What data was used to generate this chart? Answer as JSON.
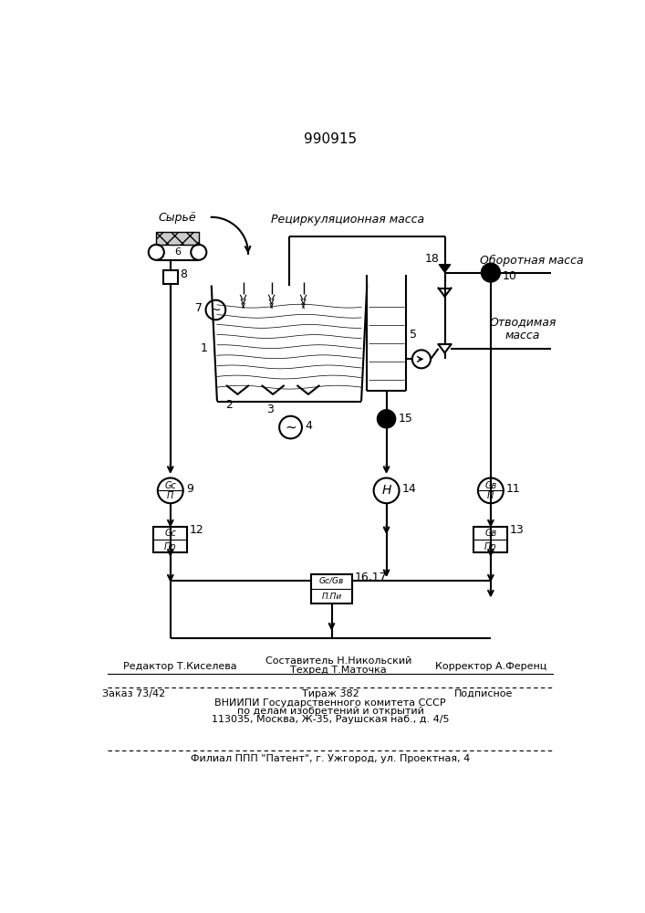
{
  "title": "990915",
  "background_color": "#ffffff",
  "line_color": "#000000",
  "text_recirc": "Рециркуляционная масса",
  "text_syrye": "Сырьё",
  "text_oborot": "Оборотная масса",
  "text_otvodim": "Отводимая\nмасса",
  "text_editor": "Редактор Т.Киселева",
  "text_composer": "Составитель Н.Никольский",
  "text_techred": "Техред Т.Маточка",
  "text_corrector": "Корректор А.Ференц",
  "text_zakaz": "Заказ 73/42",
  "text_tirazh": "Тираж 382",
  "text_podpis": "Подписное",
  "text_vniip": "ВНИИПИ Государственного комитета СССР",
  "text_dela": "по делам изобретений и открытий",
  "text_address": "113035, Москва, Ж-35, Раушская наб., д. 4/5",
  "text_filial": "Филиал ППП \"Патент\", г. Ужгород, ул. Проектная, 4"
}
